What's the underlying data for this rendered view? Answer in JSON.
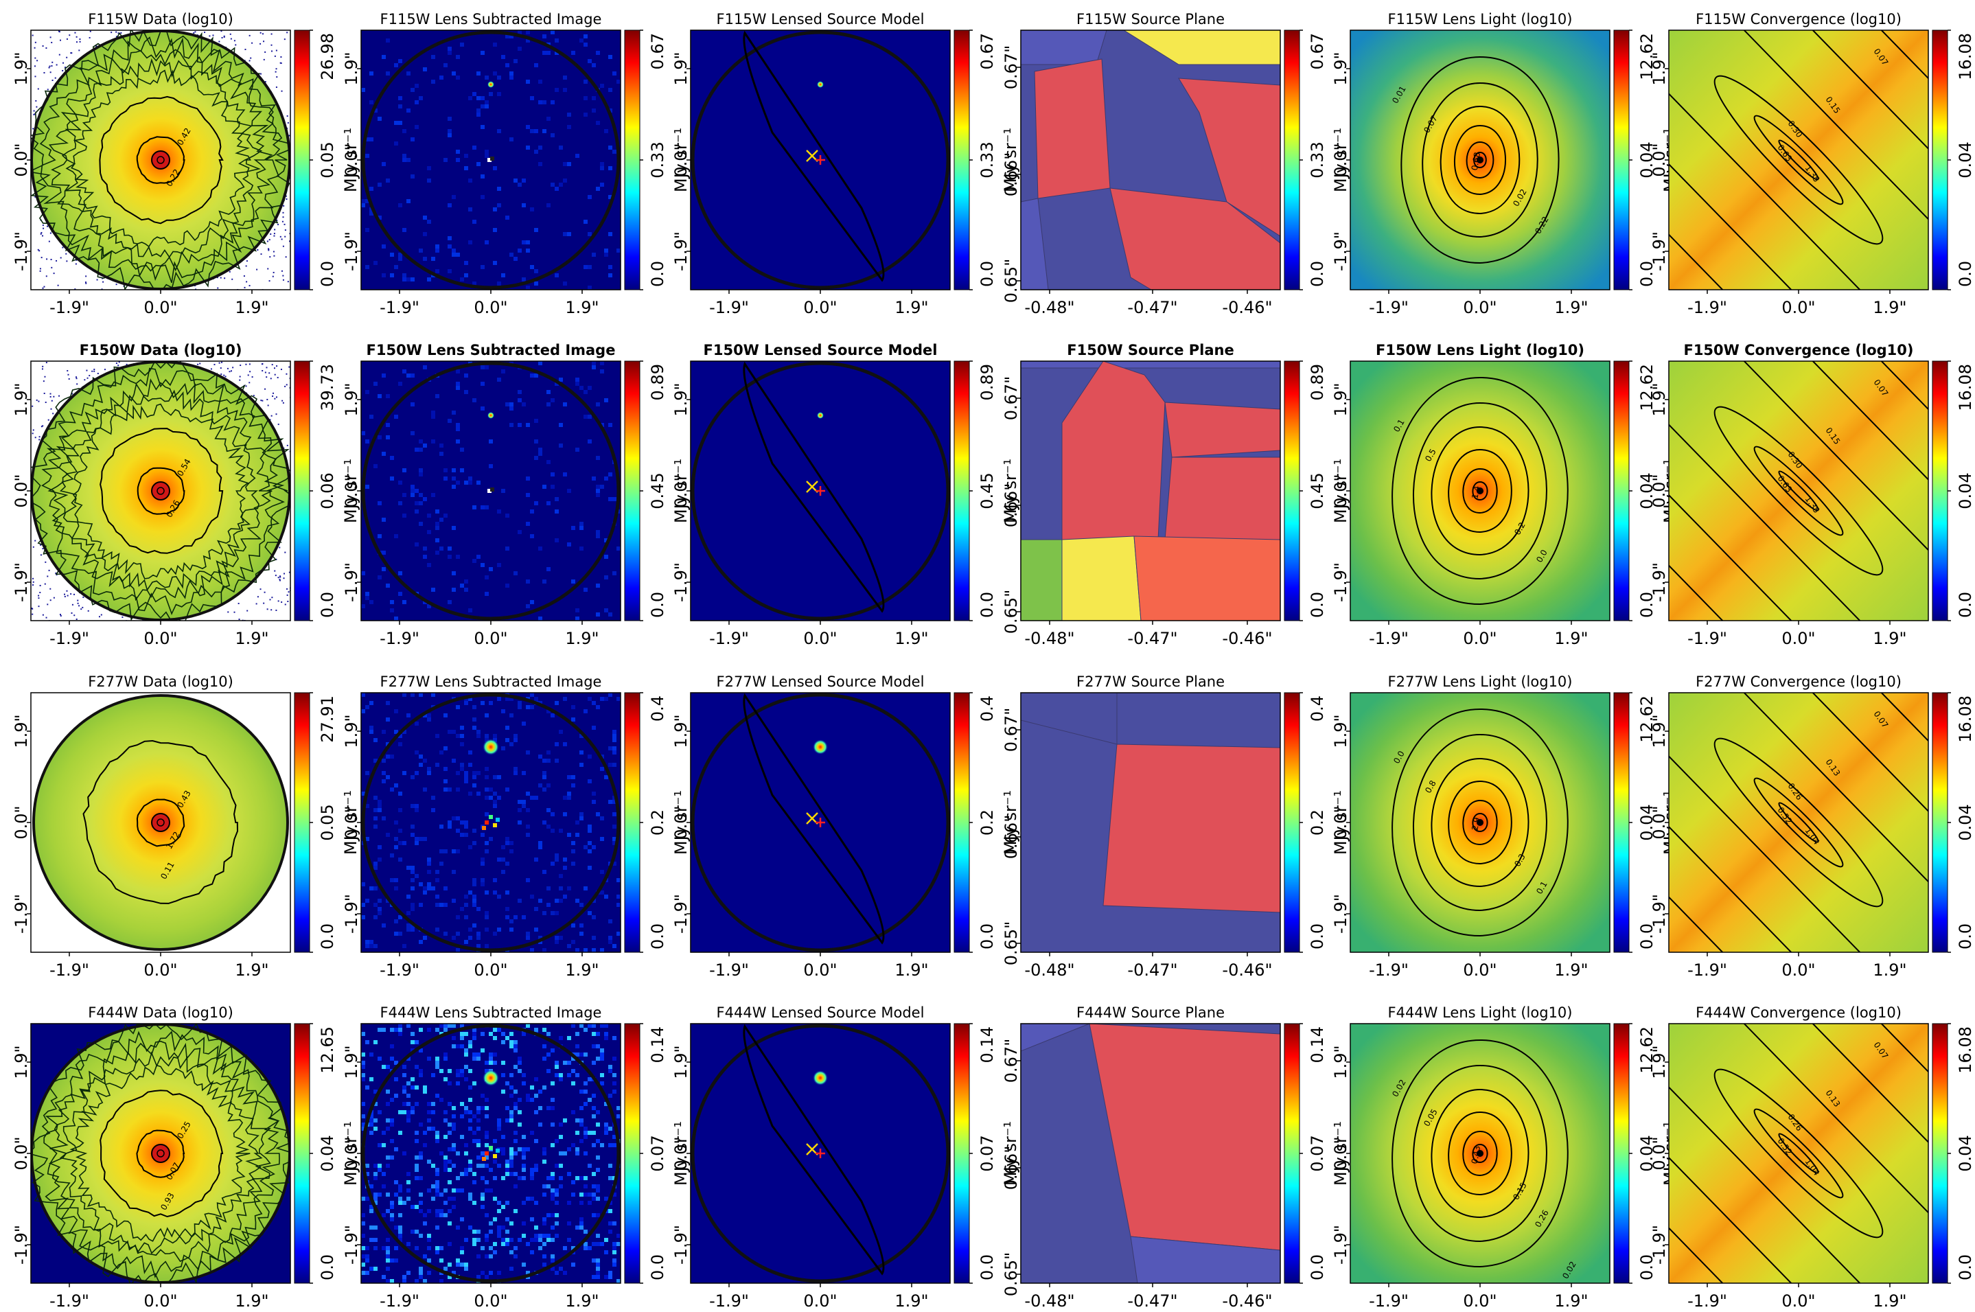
{
  "figure": {
    "type": "grid-of-image-panels",
    "rows": 4,
    "cols": 6
  },
  "colors": {
    "jet": [
      "#00007f",
      "#0000ff",
      "#007fff",
      "#00ffff",
      "#7fff7f",
      "#ffff00",
      "#ff7f00",
      "#ff0000",
      "#7f0000"
    ],
    "panel_bg_dark": "#00007f",
    "critical_curve": "#000000",
    "source_marker_cross": "#ffd700",
    "source_marker_plus": "#ff2020",
    "delaunay_cells": {
      "low": "#4a4ea0",
      "high": "#e05058",
      "mid": "#f5e84e",
      "green": "#7ec24a",
      "orange": "#f5664c",
      "mid_blue": "#5558b8"
    }
  },
  "cbar_unit_label": "MJy sr⁻¹",
  "image_ticks": [
    "-1.9\"",
    "0.0\"",
    "1.9\""
  ],
  "source_ticks_x": [
    "-0.48\"",
    "-0.47\"",
    "-0.46\""
  ],
  "source_ticks_y": [
    "0.65\"",
    "0.66\"",
    "0.67\""
  ],
  "chart_data": [
    {
      "band": "F115W",
      "title_bold": false,
      "panels": [
        {
          "kind": "data",
          "title": "F115W Data (log10)",
          "cbar": {
            "min": "0.0",
            "mid": "0.05",
            "max": "26.98"
          },
          "contour_labels": [
            "0.42",
            "0.22"
          ],
          "background": "white"
        },
        {
          "kind": "residual",
          "title": "F115W Lens Subtracted Image",
          "cbar": {
            "min": "0.0",
            "mid": "0.33",
            "max": "0.67"
          }
        },
        {
          "kind": "model",
          "title": "F115W Lensed Source Model",
          "cbar": {
            "min": "0.0",
            "mid": "0.33",
            "max": "0.67"
          }
        },
        {
          "kind": "source",
          "title": "F115W Source Plane",
          "cbar": {
            "min": "0.0",
            "mid": "0.33",
            "max": "0.67"
          }
        },
        {
          "kind": "lenslight",
          "title": "F115W Lens Light (log10)",
          "cbar": {
            "min": "0.0",
            "mid": "0.04",
            "max": "12.62"
          },
          "contour_labels": [
            "0.01",
            "0.07",
            "0.02",
            "0.22",
            "0.68"
          ]
        },
        {
          "kind": "convergence",
          "title": "F115W Convergence (log10)",
          "cbar": {
            "min": "0.0",
            "mid": "0.04",
            "max": "16.08"
          },
          "contour_labels": [
            "0.07",
            "0.15",
            "0.30",
            "0.63",
            "1.35"
          ]
        }
      ]
    },
    {
      "band": "F150W",
      "title_bold": true,
      "panels": [
        {
          "kind": "data",
          "title": "F150W Data (log10)",
          "cbar": {
            "min": "0.0",
            "mid": "0.06",
            "max": "39.73"
          },
          "contour_labels": [
            "0.54",
            "0.26"
          ],
          "background": "white"
        },
        {
          "kind": "residual",
          "title": "F150W Lens Subtracted Image",
          "cbar": {
            "min": "0.0",
            "mid": "0.45",
            "max": "0.89"
          }
        },
        {
          "kind": "model",
          "title": "F150W Lensed Source Model",
          "cbar": {
            "min": "0.0",
            "mid": "0.45",
            "max": "0.89"
          }
        },
        {
          "kind": "source",
          "title": "F150W Source Plane",
          "cbar": {
            "min": "0.0",
            "mid": "0.45",
            "max": "0.89"
          }
        },
        {
          "kind": "lenslight",
          "title": "F150W Lens Light (log10)",
          "cbar": {
            "min": "0.0",
            "mid": "0.04",
            "max": "12.62"
          },
          "contour_labels": [
            "0.1",
            "0.5",
            "0.2",
            "0.0",
            "1.4"
          ]
        },
        {
          "kind": "convergence",
          "title": "F150W Convergence (log10)",
          "cbar": {
            "min": "0.0",
            "mid": "0.04",
            "max": "16.08"
          },
          "contour_labels": [
            "0.07",
            "0.15",
            "0.30",
            "0.63",
            "1.35"
          ]
        }
      ]
    },
    {
      "band": "F277W",
      "title_bold": false,
      "panels": [
        {
          "kind": "data",
          "title": "F277W Data (log10)",
          "cbar": {
            "min": "0.0",
            "mid": "0.05",
            "max": "27.91"
          },
          "contour_labels": [
            "0.43",
            "1.72",
            "0.11"
          ],
          "background": "white"
        },
        {
          "kind": "residual",
          "title": "F277W Lens Subtracted Image",
          "cbar": {
            "min": "0.0",
            "mid": "0.2",
            "max": "0.4"
          }
        },
        {
          "kind": "model",
          "title": "F277W Lensed Source Model",
          "cbar": {
            "min": "0.0",
            "mid": "0.2",
            "max": "0.4"
          }
        },
        {
          "kind": "source",
          "title": "F277W Source Plane",
          "cbar": {
            "min": "0.0",
            "mid": "0.2",
            "max": "0.4"
          }
        },
        {
          "kind": "lenslight",
          "title": "F277W Lens Light (log10)",
          "cbar": {
            "min": "0.0",
            "mid": "0.04",
            "max": "12.62"
          },
          "contour_labels": [
            "0.0",
            "0.8",
            "0.3",
            "0.1",
            "2.9"
          ]
        },
        {
          "kind": "convergence",
          "title": "F277W Convergence (log10)",
          "cbar": {
            "min": "0.0",
            "mid": "0.04",
            "max": "16.08"
          },
          "contour_labels": [
            "0.07",
            "0.13",
            "0.26",
            "0.52",
            "1.04"
          ]
        }
      ]
    },
    {
      "band": "F444W",
      "title_bold": false,
      "panels": [
        {
          "kind": "data",
          "title": "F444W Data (log10)",
          "cbar": {
            "min": "0.0",
            "mid": "0.04",
            "max": "12.65"
          },
          "contour_labels": [
            "0.25",
            "0.07",
            "0.93"
          ],
          "background": "dark"
        },
        {
          "kind": "residual",
          "title": "F444W Lens Subtracted Image",
          "cbar": {
            "min": "0.0",
            "mid": "0.07",
            "max": "0.14"
          }
        },
        {
          "kind": "model",
          "title": "F444W Lensed Source Model",
          "cbar": {
            "min": "0.0",
            "mid": "0.07",
            "max": "0.14"
          }
        },
        {
          "kind": "source",
          "title": "F444W Source Plane",
          "cbar": {
            "min": "0.0",
            "mid": "0.07",
            "max": "0.14"
          }
        },
        {
          "kind": "lenslight",
          "title": "F444W Lens Light (log10)",
          "cbar": {
            "min": "0.0",
            "mid": "0.04",
            "max": "12.62"
          },
          "contour_labels": [
            "0.02",
            "0.05",
            "0.15",
            "0.26",
            "0.43",
            "0.02"
          ]
        },
        {
          "kind": "convergence",
          "title": "F444W Convergence (log10)",
          "cbar": {
            "min": "0.0",
            "mid": "0.04",
            "max": "16.08"
          },
          "contour_labels": [
            "0.07",
            "0.13",
            "0.26",
            "0.52",
            "1.04"
          ]
        }
      ]
    }
  ]
}
